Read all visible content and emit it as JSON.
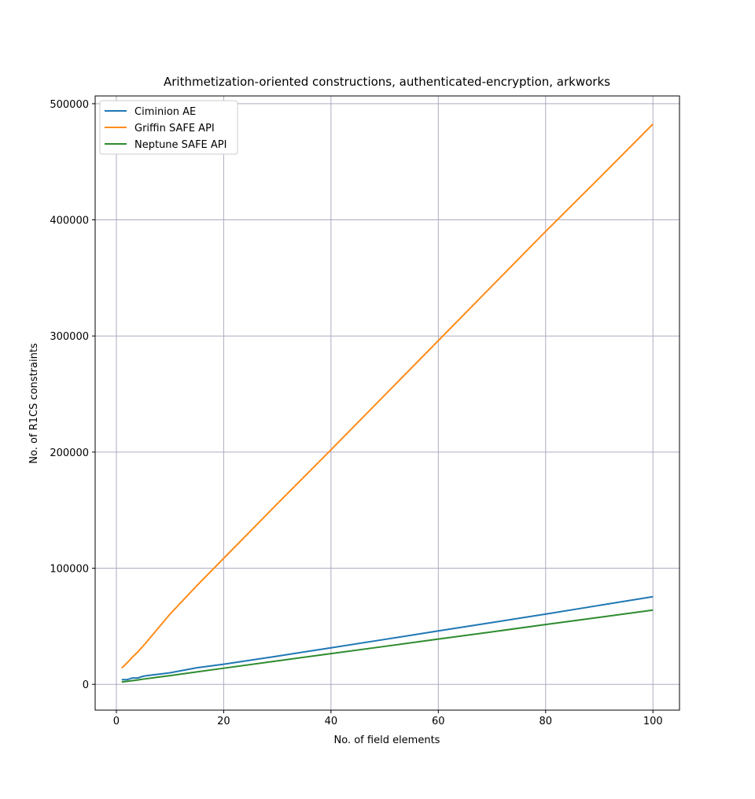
{
  "chart_data": {
    "type": "line",
    "title": "Arithmetization-oriented constructions, authenticated-encryption, arkworks",
    "xlabel": "No. of field elements",
    "ylabel": "No. of R1CS constraints",
    "x": [
      1,
      2,
      3,
      4,
      5,
      6,
      7,
      8,
      9,
      10,
      15,
      20,
      30,
      40,
      50,
      60,
      70,
      80,
      90,
      100
    ],
    "series": [
      {
        "name": "Ciminion AE",
        "color": "#1f77b4",
        "values": [
          4000,
          4000,
          5500,
          5500,
          7000,
          7700,
          8300,
          8800,
          9400,
          10000,
          14300,
          17300,
          24300,
          31500,
          38700,
          46000,
          53200,
          60500,
          68000,
          75500
        ]
      },
      {
        "name": "Griffin SAFE API",
        "color": "#ff8c1a",
        "values": [
          14000,
          18500,
          23500,
          28000,
          33000,
          38500,
          44000,
          49500,
          55000,
          60500,
          85000,
          108500,
          155500,
          202000,
          249000,
          296000,
          343000,
          390000,
          436000,
          482500
        ]
      },
      {
        "name": "Neptune SAFE API",
        "color": "#2e8b2e",
        "values": [
          2000,
          2600,
          3200,
          3800,
          4500,
          5100,
          5700,
          6300,
          6900,
          7500,
          10700,
          13900,
          20200,
          26500,
          32700,
          39000,
          45200,
          51500,
          57700,
          64000
        ]
      }
    ],
    "xlim": [
      -3.95,
      104.95
    ],
    "ylim": [
      -22200,
      506700
    ],
    "xticks": [
      0,
      20,
      40,
      60,
      80,
      100
    ],
    "yticks": [
      0,
      100000,
      200000,
      300000,
      400000,
      500000
    ],
    "grid": true,
    "legend": "upper-left"
  }
}
